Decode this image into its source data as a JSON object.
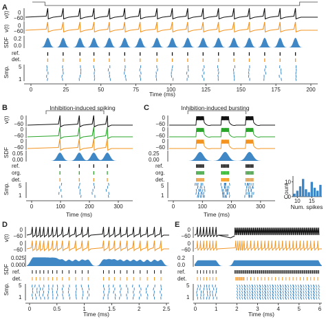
{
  "colors": {
    "black": "#111111",
    "orange": "#f39422",
    "green": "#2aa52a",
    "blue": "#3b86c6",
    "sdf_fill": "#3f87c5"
  },
  "chart_data": [
    {
      "type": "line",
      "panel": "A",
      "xlabel": "Time (ms)",
      "xlim": [
        0,
        200
      ],
      "xticks": [
        0,
        25,
        50,
        75,
        100,
        125,
        150,
        175,
        200
      ],
      "row_labels": [
        "v(t)",
        "v(t)",
        "SDF",
        "ref.",
        "det.",
        "Smp."
      ],
      "v_ticks": [
        "0",
        "−60"
      ],
      "sdf_ticks": [
        "0.2",
        "0.0"
      ],
      "smp_ticks": [
        "5",
        "1"
      ],
      "input_step": [
        10,
        192
      ],
      "series": [
        {
          "color": "black",
          "spikes": [
            12,
            23,
            35,
            45,
            56,
            67,
            78,
            90,
            101,
            112,
            123,
            134,
            145,
            156,
            167,
            178,
            189
          ]
        },
        {
          "color": "orange",
          "spikes": [
            12,
            23,
            35,
            45,
            56,
            67,
            78,
            90,
            101,
            112,
            123,
            134,
            145,
            156,
            167,
            178,
            189
          ]
        }
      ],
      "ref_spikes": [
        12,
        23,
        35,
        45,
        56,
        67,
        78,
        90,
        101,
        112,
        123,
        134,
        145,
        156,
        167,
        178,
        189
      ],
      "det_spikes": [
        12,
        23,
        35,
        45,
        56,
        67,
        78,
        90,
        101,
        112,
        123,
        134,
        145,
        156,
        167,
        178,
        189
      ]
    },
    {
      "type": "line",
      "panel": "B",
      "title": "Inhibition-induced spiking",
      "xlabel": "Time (ms)",
      "xlim": [
        0,
        350
      ],
      "xticks": [
        0,
        100,
        200,
        300
      ],
      "row_labels": [
        "v(t)",
        "v(t)",
        "v(t)",
        "SDF",
        "ref.",
        "org.",
        "det.",
        "Smp."
      ],
      "v_ticks": [
        "0",
        "−60"
      ],
      "sdf_ticks": [
        "0.05",
        "0.00"
      ],
      "smp_ticks": [
        "5",
        "1"
      ],
      "input_step": [
        50,
        250
      ],
      "spikes": [
        98,
        165,
        215,
        262
      ]
    },
    {
      "type": "line",
      "panel": "C",
      "title": "Inhibition-induced bursting",
      "xlabel": "Time (ms)",
      "xlim": [
        0,
        350
      ],
      "xticks": [
        0,
        100,
        200,
        300
      ],
      "row_labels": [
        "v(t)",
        "v(t)",
        "v(t)",
        "SDF",
        "ref.",
        "org.",
        "det.",
        "Smp."
      ],
      "v_ticks": [
        "0",
        "−60"
      ],
      "sdf_ticks": [
        "0.25",
        "0.00"
      ],
      "smp_ticks": [
        "5",
        "1"
      ],
      "input_step": [
        50,
        250
      ],
      "bursts": [
        92,
        178,
        262
      ]
    },
    {
      "type": "bar",
      "panel": "C-inset",
      "xlabel": "Num. spikes",
      "ylabel": "Count",
      "xticks": [
        10,
        15
      ],
      "yticks": [
        0,
        10
      ],
      "x": [
        9,
        10,
        11,
        12,
        13,
        14,
        15,
        16,
        17,
        18
      ],
      "values": [
        2,
        4,
        7,
        12,
        5,
        3,
        10,
        6,
        4,
        8
      ]
    },
    {
      "type": "line",
      "panel": "D",
      "xlabel": "Time (ms)",
      "xlim": [
        0,
        2.5
      ],
      "xticks": [
        0,
        0.5,
        1,
        1.5,
        2,
        2.5
      ],
      "row_labels": [
        "v(t)",
        "v(t)",
        "SDF",
        "ref.",
        "det.",
        "Smp."
      ],
      "v_ticks": [
        "0",
        "−60"
      ],
      "sdf_ticks": [
        "0.025",
        "0.000"
      ],
      "smp_ticks": [
        "5",
        "1"
      ]
    },
    {
      "type": "line",
      "panel": "E",
      "xlabel": "Time (ms)",
      "xlim": [
        0,
        6
      ],
      "xticks": [
        0,
        1,
        2,
        3,
        4,
        5,
        6
      ],
      "row_labels": [
        "v(t)",
        "v(t)",
        "SDF",
        "ref.",
        "det.",
        "Smp."
      ],
      "v_ticks": [
        "0",
        "−60"
      ],
      "sdf_ticks": [
        "0.2",
        "0.0"
      ],
      "smp_ticks": [
        "5",
        "1"
      ]
    }
  ]
}
